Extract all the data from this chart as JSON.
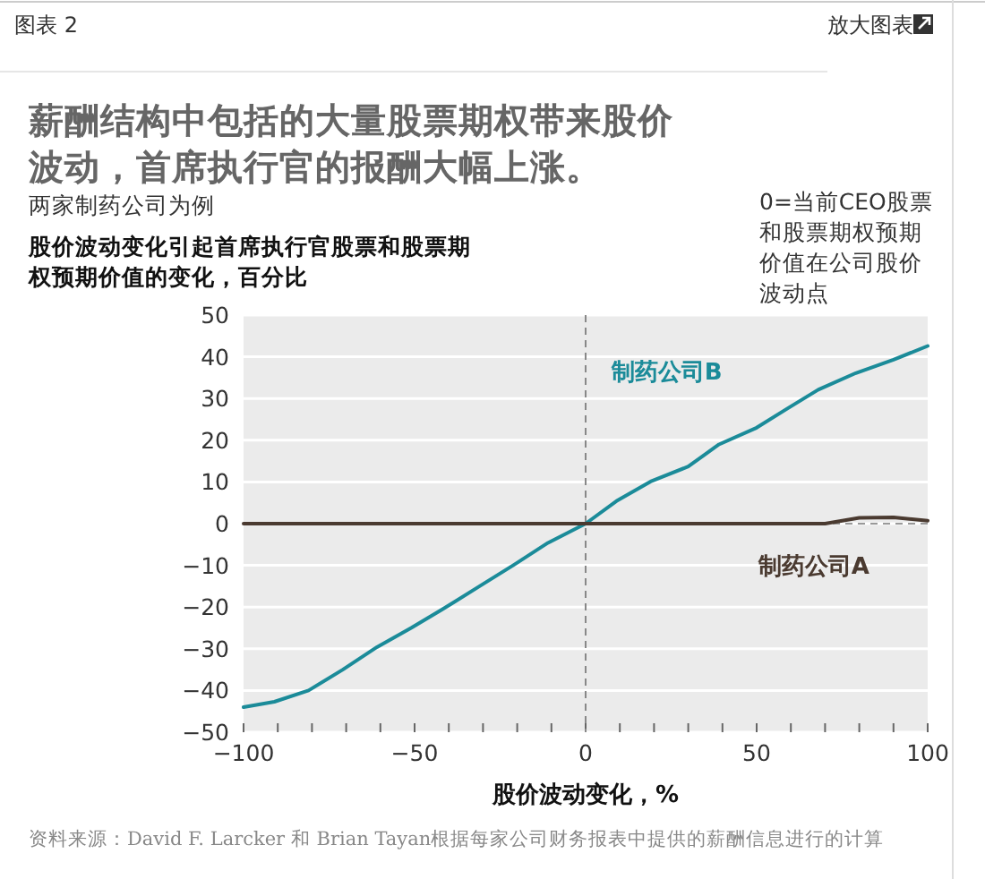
{
  "chart_data": {
    "type": "line",
    "title": "薪酬结构中包括的大量股票期权带来股价波动，首席执行官的报酬大幅上涨。",
    "subtitle": "两家制药公司为例",
    "ylabel": "股价波动变化引起首席执行官股票和股票期权预期价值的变化，百分比",
    "xlabel": "股价波动变化，%",
    "annotations": [
      "图表 2",
      "放大图表",
      "0=当前CEO股票和股票期权预期价值在公司股价波动点",
      "资料来源：David F. Larcker 和 Brian Tayan根据每家公司财务报表中提供的薪酬信息进行的计算"
    ],
    "series": [
      {
        "name": "制药公司B",
        "color": "#1b8b99",
        "x": [
          -100,
          -91,
          -81,
          -71,
          -61,
          -51,
          -42,
          -31,
          -21,
          -11,
          0,
          9,
          19,
          30,
          39,
          50,
          59,
          68,
          79,
          90,
          100
        ],
        "values": [
          -44,
          -42.7,
          -40,
          -35,
          -29.6,
          -25,
          -20.6,
          -15,
          -9.9,
          -4.6,
          0,
          5.4,
          10.1,
          13.7,
          19,
          23,
          27.6,
          32.1,
          36.1,
          39.3,
          42.6
        ]
      },
      {
        "name": "制药公司A",
        "color": "#4a3a30",
        "x": [
          -100,
          0,
          70,
          80,
          90,
          100
        ],
        "values": [
          0,
          0,
          0,
          1.4,
          1.5,
          0.7
        ]
      }
    ],
    "ref_lines": [
      {
        "axis": "y",
        "value": 0,
        "color": "#999999",
        "line_style": "dashed"
      },
      {
        "axis": "x",
        "value": 0,
        "color": "#888888",
        "line_style": "dashed"
      }
    ],
    "xlim": [
      -100,
      100
    ],
    "xticks": [
      -100,
      {
        "value": -90,
        "label": null
      },
      {
        "value": -80,
        "label": null
      },
      {
        "value": -70,
        "label": null
      },
      {
        "value": -60,
        "label": null
      },
      -50,
      {
        "value": -40,
        "label": null
      },
      {
        "value": -30,
        "label": null
      },
      {
        "value": -20,
        "label": null
      },
      {
        "value": -10,
        "label": null
      },
      0,
      {
        "value": 10,
        "label": null
      },
      {
        "value": 20,
        "label": null
      },
      {
        "value": 30,
        "label": null
      },
      {
        "value": 40,
        "label": null
      },
      50,
      {
        "value": 60,
        "label": null
      },
      {
        "value": 70,
        "label": null
      },
      {
        "value": 80,
        "label": null
      },
      {
        "value": 90,
        "label": null
      },
      100
    ],
    "ylim": [
      -50,
      50
    ],
    "yticks": [
      -50,
      -40,
      -30,
      -20,
      -10,
      0,
      10,
      20,
      30,
      40,
      50
    ],
    "grid": "y",
    "legend": false,
    "line_style": "solid",
    "marker": "none"
  }
}
